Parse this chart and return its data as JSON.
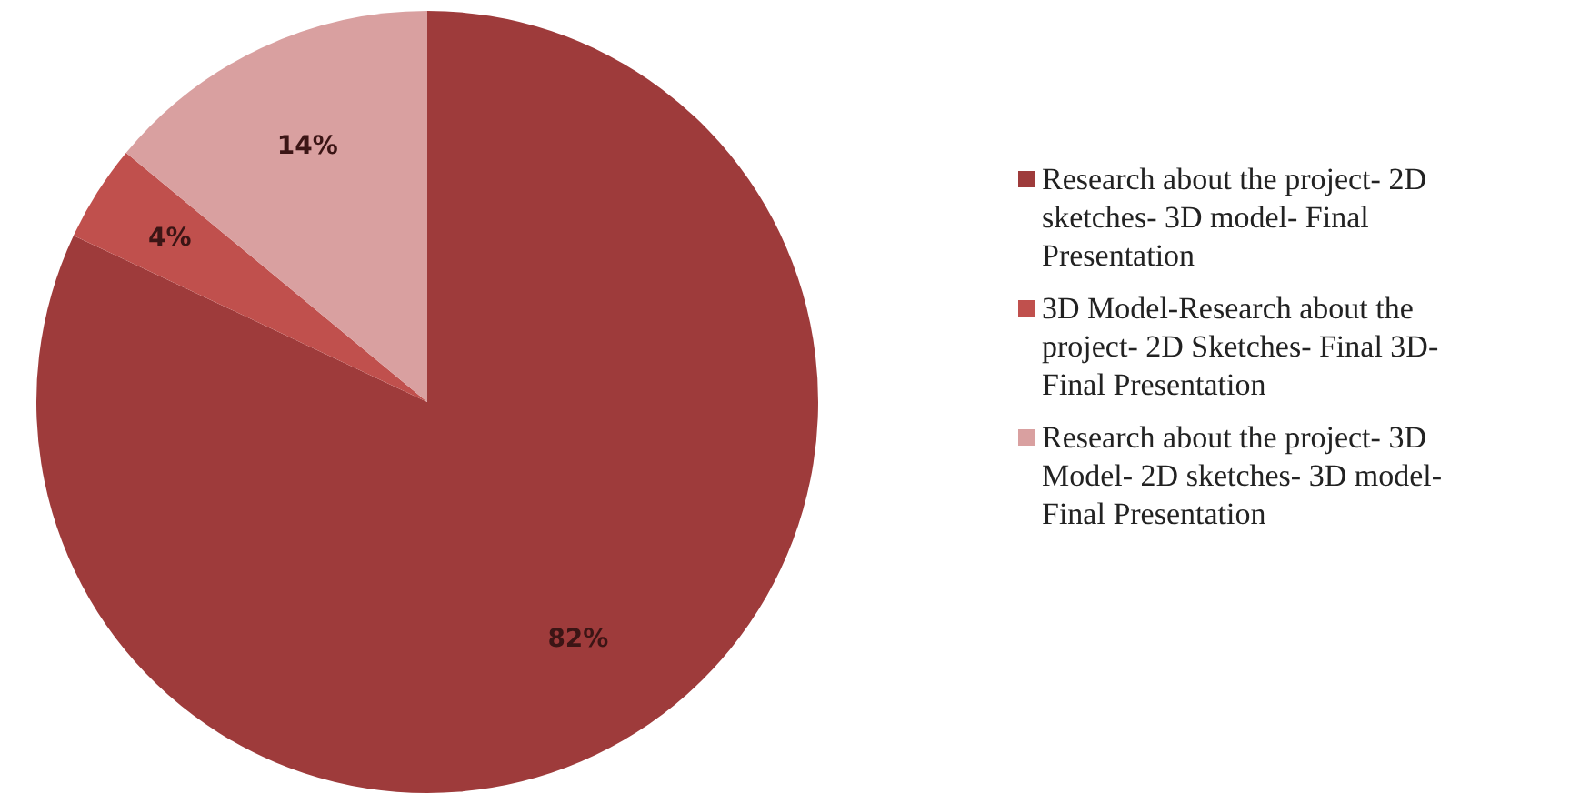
{
  "chart_data": {
    "type": "pie",
    "categories": [
      "Research about the project- 2D sketches- 3D model- Final Presentation",
      "3D Model-Research about the project- 2D Sketches- Final 3D- Final Presentation",
      "Research about the project- 3D Model- 2D sketches- 3D model- Final Presentation"
    ],
    "values": [
      82,
      4,
      14
    ],
    "colors": [
      "#9e3b3b",
      "#c0504d",
      "#d9a0a0"
    ],
    "value_labels": [
      "82%",
      "4%",
      "14%"
    ],
    "legend": "right"
  }
}
